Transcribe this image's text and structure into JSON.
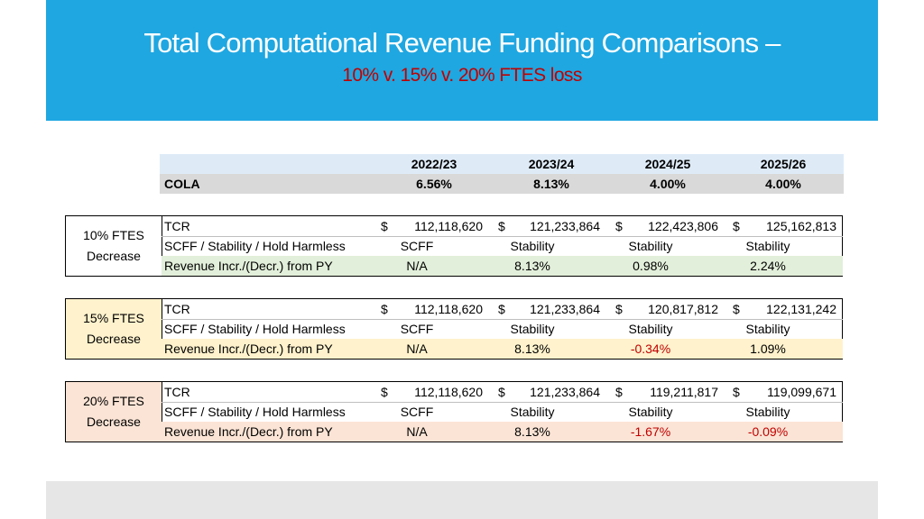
{
  "header": {
    "title": "Total Computational Revenue Funding Comparisons –",
    "subtitle": "10% v. 15% v. 20% FTES loss"
  },
  "columns": [
    "2022/23",
    "2023/24",
    "2024/25",
    "2025/26"
  ],
  "cola": {
    "label": "COLA",
    "values": [
      "6.56%",
      "8.13%",
      "4.00%",
      "4.00%"
    ]
  },
  "row_labels": {
    "tcr": "TCR",
    "scff": "SCFF / Stability / Hold Harmless",
    "rev": "Revenue Incr./(Decr.) from PY"
  },
  "currency_symbol": "$",
  "groups": [
    {
      "label_line1": "10% FTES",
      "label_line2": "Decrease",
      "label_bg": "#ffffff",
      "rev_bg": "#e2efda",
      "tcr": [
        "112,118,620",
        "121,233,864",
        "122,423,806",
        "125,162,813"
      ],
      "scff": [
        "SCFF",
        "Stability",
        "Stability",
        "Stability"
      ],
      "rev": [
        "N/A",
        "8.13%",
        "0.98%",
        "2.24%"
      ],
      "rev_negative": [
        false,
        false,
        false,
        false
      ]
    },
    {
      "label_line1": "15% FTES",
      "label_line2": "Decrease",
      "label_bg": "#fff2cc",
      "rev_bg": "#fff2cc",
      "tcr": [
        "112,118,620",
        "121,233,864",
        "120,817,812",
        "122,131,242"
      ],
      "scff": [
        "SCFF",
        "Stability",
        "Stability",
        "Stability"
      ],
      "rev": [
        "N/A",
        "8.13%",
        "-0.34%",
        "1.09%"
      ],
      "rev_negative": [
        false,
        false,
        true,
        false
      ]
    },
    {
      "label_line1": "20% FTES",
      "label_line2": "Decrease",
      "label_bg": "#fbe4d5",
      "rev_bg": "#fbe4d5",
      "tcr": [
        "112,118,620",
        "121,233,864",
        "119,211,817",
        "119,099,671"
      ],
      "scff": [
        "SCFF",
        "Stability",
        "Stability",
        "Stability"
      ],
      "rev": [
        "N/A",
        "8.13%",
        "-1.67%",
        "-0.09%"
      ],
      "rev_negative": [
        false,
        false,
        true,
        true
      ]
    }
  ],
  "colors": {
    "banner": "#1fa7e1",
    "subtitle": "#c00000",
    "negative": "#c00000"
  }
}
